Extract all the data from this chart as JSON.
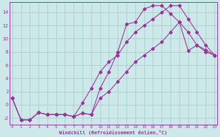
{
  "xlabel": "Windchill (Refroidissement éolien,°C)",
  "background_color": "#cce8e8",
  "grid_color": "#aacccc",
  "line_color": "#993399",
  "line1_x": [
    0,
    1,
    2,
    3,
    4,
    5,
    6,
    7,
    8,
    9,
    10,
    11,
    12,
    13,
    14,
    15,
    16,
    17,
    18,
    19,
    20,
    21,
    22,
    23
  ],
  "line1_y": [
    1,
    -2.3,
    -2.3,
    -1.2,
    -1.5,
    -1.5,
    -1.5,
    -1.8,
    -1.3,
    -1.5,
    2.5,
    5,
    8,
    12.2,
    12.5,
    14.5,
    15,
    15,
    13.8,
    12.5,
    8.2,
    9,
    8.3,
    7.5
  ],
  "line2_x": [
    0,
    1,
    2,
    3,
    4,
    5,
    6,
    7,
    8,
    9,
    10,
    11,
    12,
    13,
    14,
    15,
    16,
    17,
    18,
    19,
    20,
    21,
    22,
    23
  ],
  "line2_y": [
    1,
    -2.3,
    -2.3,
    -1.2,
    -1.5,
    -1.5,
    -1.5,
    -1.8,
    0.3,
    2.5,
    5,
    6.5,
    7.5,
    9.5,
    11,
    12,
    13,
    14,
    15,
    15,
    13,
    11,
    9,
    7.5
  ],
  "line3_x": [
    0,
    1,
    2,
    3,
    4,
    5,
    6,
    7,
    8,
    9,
    10,
    11,
    12,
    13,
    14,
    15,
    16,
    17,
    18,
    19,
    20,
    21,
    22,
    23
  ],
  "line3_y": [
    1,
    -2.3,
    -2.3,
    -1.2,
    -1.5,
    -1.5,
    -1.5,
    -1.8,
    -1.3,
    -1.5,
    1,
    2,
    3.5,
    5,
    6.5,
    7.5,
    8.5,
    9.5,
    11,
    12.5,
    11,
    9,
    8,
    7.5
  ],
  "xlim": [
    0,
    23
  ],
  "ylim": [
    -3,
    15.5
  ],
  "yticks": [
    -2,
    0,
    2,
    4,
    6,
    8,
    10,
    12,
    14
  ],
  "xticks": [
    0,
    1,
    2,
    3,
    4,
    5,
    6,
    7,
    8,
    9,
    10,
    11,
    12,
    13,
    14,
    15,
    16,
    17,
    18,
    19,
    20,
    21,
    22,
    23
  ]
}
